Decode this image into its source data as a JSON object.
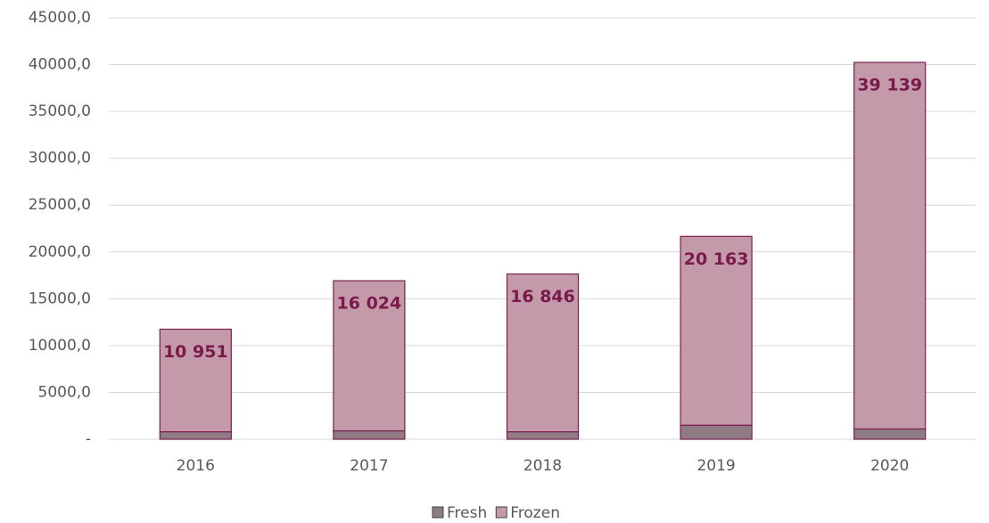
{
  "chart_data": {
    "type": "stacked_bar",
    "categories": [
      "2016",
      "2017",
      "2018",
      "2019",
      "2020"
    ],
    "series": [
      {
        "name": "Fresh",
        "color": "#8e7b83",
        "values": [
          800,
          900,
          800,
          1500,
          1100
        ]
      },
      {
        "name": "Frozen",
        "color": "#c49aab",
        "values": [
          10951,
          16024,
          16846,
          20163,
          39139
        ],
        "value_labels": [
          "10 951",
          "16 024",
          "16 846",
          "20 163",
          "39 139"
        ]
      }
    ],
    "ylim": [
      0,
      45000
    ],
    "yticks": [
      {
        "value": 0,
        "label": "-"
      },
      {
        "value": 5000,
        "label": "5000,0"
      },
      {
        "value": 10000,
        "label": "10000,0"
      },
      {
        "value": 15000,
        "label": "15000,0"
      },
      {
        "value": 20000,
        "label": "20000,0"
      },
      {
        "value": 25000,
        "label": "25000,0"
      },
      {
        "value": 30000,
        "label": "30000,0"
      },
      {
        "value": 35000,
        "label": "35000,0"
      },
      {
        "value": 40000,
        "label": "40000,0"
      },
      {
        "value": 45000,
        "label": "45000,0"
      }
    ],
    "grid": true,
    "legend": "bottom"
  }
}
